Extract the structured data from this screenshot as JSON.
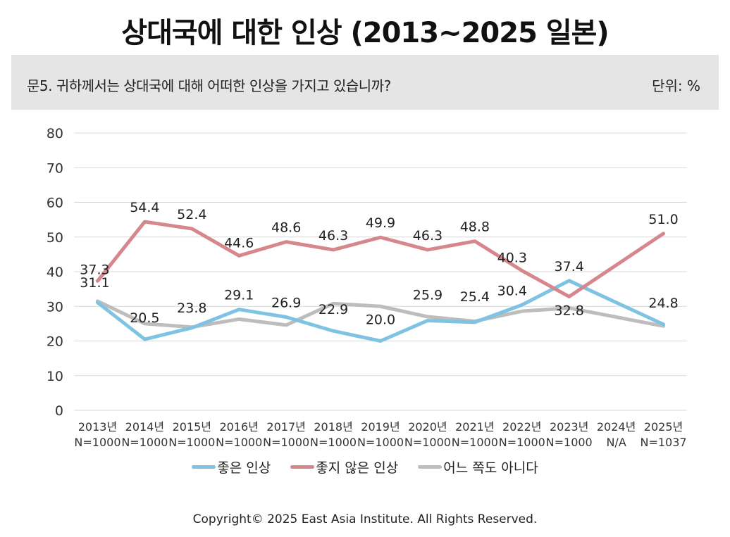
{
  "header": {
    "title": "상대국에 대한 인상 (2013~2025 일본)",
    "question": "문5. 귀하께서는 상대국에 대해 어떠한 인상을 가지고 있습니까?",
    "unit": "단위: %"
  },
  "footer": {
    "copyright": "Copyright© 2025 East Asia Institute. All Rights Reserved."
  },
  "chart_data": {
    "type": "line",
    "title": "상대국에 대한 인상 (2013~2025 일본)",
    "xlabel": "",
    "ylabel": "",
    "ylim": [
      0,
      80
    ],
    "yticks": [
      "0",
      "10",
      "20",
      "30",
      "40",
      "50",
      "60",
      "70",
      "80"
    ],
    "grid": true,
    "legend_position": "bottom",
    "categories": [
      "2013년",
      "2014년",
      "2015년",
      "2016년",
      "2017년",
      "2018년",
      "2019년",
      "2020년",
      "2021년",
      "2022년",
      "2023년",
      "2024년",
      "2025년"
    ],
    "sample_sizes": [
      "N=1000",
      "N=1000",
      "N=1000",
      "N=1000",
      "N=1000",
      "N=1000",
      "N=1000",
      "N=1000",
      "N=1000",
      "N=1000",
      "N=1000",
      "N/A",
      "N=1037"
    ],
    "series": [
      {
        "name": "좋은 인상",
        "color": "#7fc3e3",
        "values": [
          31.1,
          20.5,
          23.8,
          29.1,
          26.9,
          22.9,
          20.0,
          25.9,
          25.4,
          30.4,
          37.4,
          null,
          24.8
        ],
        "labels": [
          "31.1",
          "20.5",
          "23.8",
          "29.1",
          "26.9",
          "22.9",
          "20.0",
          "25.9",
          "25.4",
          "30.4",
          "37.4",
          null,
          "24.8"
        ]
      },
      {
        "name": "좋지 않은 인상",
        "color": "#d5878c",
        "values": [
          37.3,
          54.4,
          52.4,
          44.6,
          48.6,
          46.3,
          49.9,
          46.3,
          48.8,
          40.3,
          32.8,
          null,
          51.0
        ],
        "labels": [
          "37.3",
          "54.4",
          "52.4",
          "44.6",
          "48.6",
          "46.3",
          "49.9",
          "46.3",
          "48.8",
          "40.3",
          "32.8",
          null,
          "51.0"
        ]
      },
      {
        "name": "어느 쪽도 아니다",
        "color": "#bdbdbd",
        "values": [
          31.5,
          25.0,
          24.0,
          26.3,
          24.6,
          30.8,
          30.0,
          27.0,
          25.7,
          28.6,
          29.5,
          null,
          24.3
        ],
        "labels": [
          null,
          null,
          null,
          null,
          null,
          null,
          null,
          null,
          null,
          null,
          null,
          null,
          null
        ]
      }
    ]
  }
}
